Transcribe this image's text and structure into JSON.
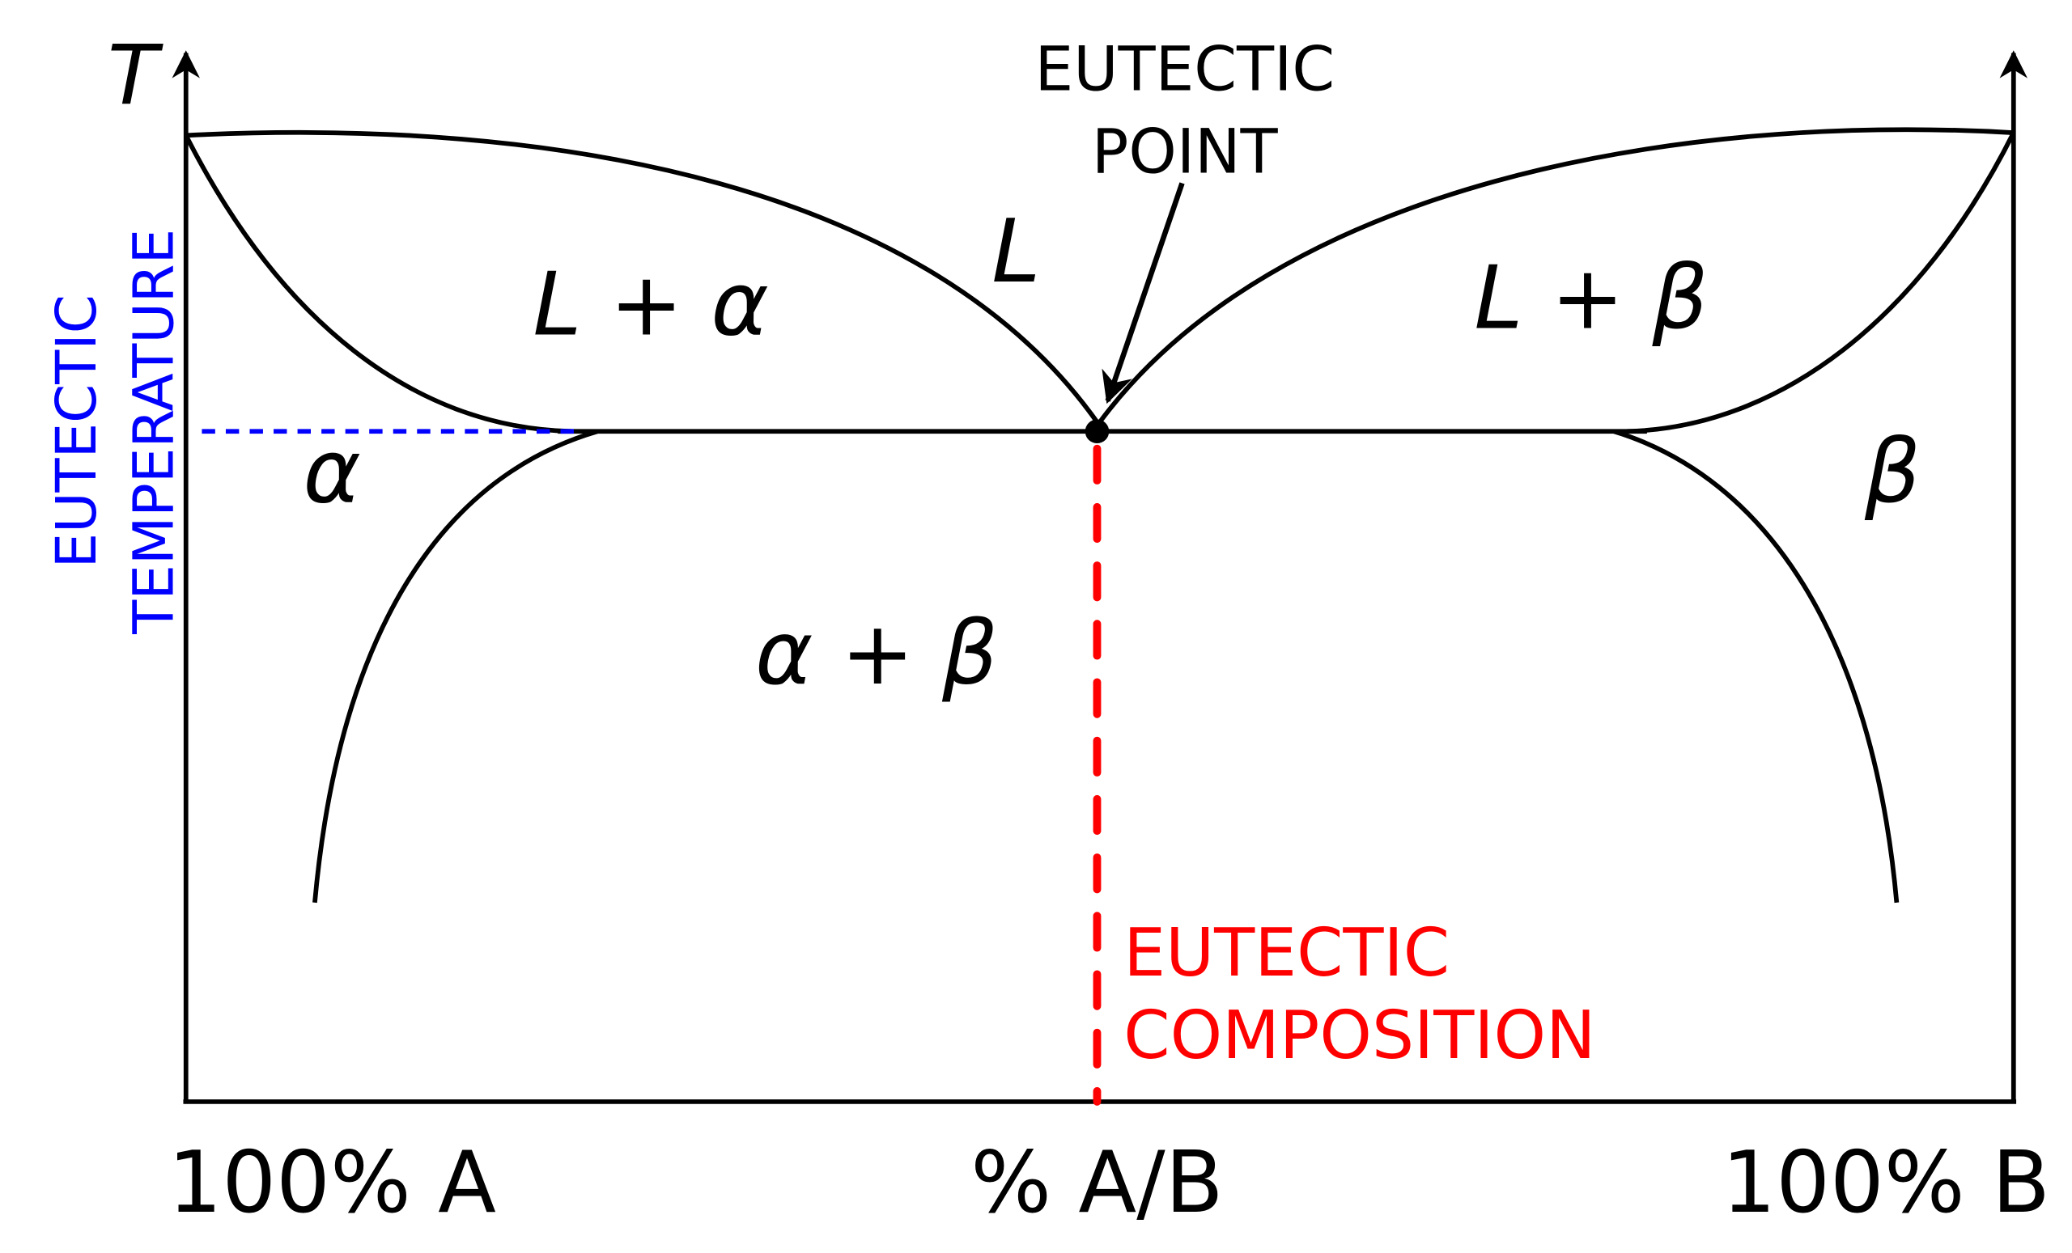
{
  "axes": {
    "y_label": "T",
    "x_left_label": "100% A",
    "x_center_label": "% A/B",
    "x_right_label": "100% B"
  },
  "regions": {
    "liquid": "L",
    "liquid_alpha": "L + α",
    "liquid_beta": "L + β",
    "alpha": "α",
    "beta": "β",
    "alpha_beta": "α + β"
  },
  "annotations": {
    "eutectic_point": [
      "EUTECTIC",
      "POINT"
    ],
    "eutectic_temperature": [
      "EUTECTIC",
      "TEMPERATURE"
    ],
    "eutectic_composition": [
      "EUTECTIC",
      "COMPOSITION"
    ]
  },
  "colors": {
    "lines": "#000000",
    "eutectic_temperature": "#0000ff",
    "eutectic_composition": "#ff0000"
  }
}
